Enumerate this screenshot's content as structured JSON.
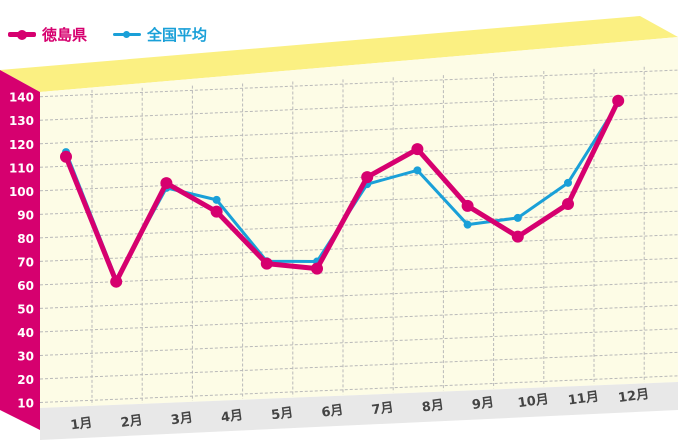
{
  "colors": {
    "series_a": "#d6006f",
    "series_b": "#1aa0d8",
    "top_band": "#fbf082",
    "plot_bg": "#fdfce6",
    "axis_band": "#d6006f",
    "x_band": "#e8e8e8",
    "grid": "#b9b9b9"
  },
  "chart_data": {
    "type": "line",
    "title": "",
    "xlabel": "",
    "ylabel": "",
    "categories": [
      "1月",
      "2月",
      "3月",
      "4月",
      "5月",
      "6月",
      "7月",
      "8月",
      "9月",
      "10月",
      "11月",
      "12月"
    ],
    "y_ticks": [
      "10",
      "20",
      "30",
      "40",
      "50",
      "60",
      "70",
      "80",
      "90",
      "100",
      "110",
      "120",
      "130",
      "140"
    ],
    "ylim": [
      0,
      150
    ],
    "grid": true,
    "legend_position": "top-left",
    "series": [
      {
        "name": "徳島県",
        "values": [
          114,
          60,
          101,
          88,
          65,
          62,
          100,
          111,
          86,
          72,
          85,
          128
        ]
      },
      {
        "name": "全国平均",
        "values": [
          116,
          61,
          99,
          93,
          66,
          65,
          97,
          102,
          78,
          80,
          94,
          127
        ]
      }
    ]
  }
}
